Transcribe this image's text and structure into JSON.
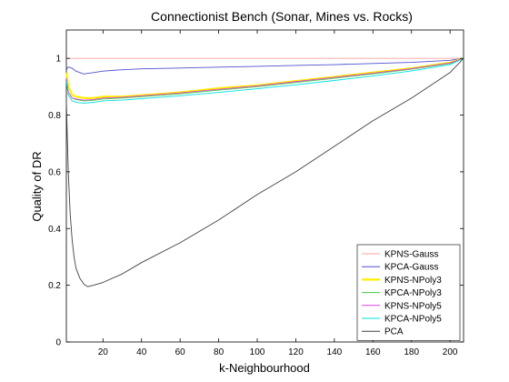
{
  "chart_data": {
    "type": "line",
    "title": "Connectionist Bench (Sonar, Mines vs. Rocks)",
    "xlabel": "k-Neighbourhood",
    "ylabel": "Quality of DR",
    "xlim": [
      1,
      207
    ],
    "ylim": [
      0,
      1.1
    ],
    "xticks": [
      20,
      40,
      60,
      80,
      100,
      120,
      140,
      160,
      180,
      200
    ],
    "yticks": [
      0,
      0.2,
      0.4,
      0.6,
      0.8,
      1
    ],
    "legend_position": "bottom-right",
    "series": [
      {
        "name": "KPNS-Gauss",
        "color": "#ff9f9f",
        "points": [
          [
            1,
            1.0
          ],
          [
            207,
            1.0
          ]
        ]
      },
      {
        "name": "KPCA-Gauss",
        "color": "#5050d0",
        "points": [
          [
            1,
            0.96
          ],
          [
            2,
            0.97
          ],
          [
            4,
            0.965
          ],
          [
            6,
            0.955
          ],
          [
            8,
            0.95
          ],
          [
            10,
            0.945
          ],
          [
            15,
            0.95
          ],
          [
            20,
            0.955
          ],
          [
            30,
            0.96
          ],
          [
            40,
            0.963
          ],
          [
            60,
            0.966
          ],
          [
            80,
            0.969
          ],
          [
            100,
            0.972
          ],
          [
            120,
            0.975
          ],
          [
            140,
            0.978
          ],
          [
            160,
            0.982
          ],
          [
            180,
            0.986
          ],
          [
            200,
            0.993
          ],
          [
            207,
            1.0
          ]
        ]
      },
      {
        "name": "KPNS-NPoly3",
        "color": "#ffee00",
        "points": [
          [
            1,
            0.95
          ],
          [
            2,
            0.9
          ],
          [
            4,
            0.87
          ],
          [
            6,
            0.865
          ],
          [
            10,
            0.86
          ],
          [
            15,
            0.86
          ],
          [
            20,
            0.865
          ],
          [
            30,
            0.865
          ],
          [
            40,
            0.87
          ],
          [
            60,
            0.88
          ],
          [
            80,
            0.895
          ],
          [
            100,
            0.905
          ],
          [
            120,
            0.92
          ],
          [
            140,
            0.935
          ],
          [
            160,
            0.95
          ],
          [
            180,
            0.965
          ],
          [
            200,
            0.985
          ],
          [
            207,
            1.0
          ]
        ]
      },
      {
        "name": "KPCA-NPoly3",
        "color": "#44cc44",
        "points": [
          [
            1,
            0.93
          ],
          [
            2,
            0.88
          ],
          [
            4,
            0.86
          ],
          [
            6,
            0.855
          ],
          [
            10,
            0.85
          ],
          [
            15,
            0.852
          ],
          [
            20,
            0.857
          ],
          [
            30,
            0.86
          ],
          [
            40,
            0.865
          ],
          [
            60,
            0.875
          ],
          [
            80,
            0.888
          ],
          [
            100,
            0.9
          ],
          [
            120,
            0.915
          ],
          [
            140,
            0.93
          ],
          [
            160,
            0.945
          ],
          [
            180,
            0.962
          ],
          [
            200,
            0.982
          ],
          [
            207,
            1.0
          ]
        ]
      },
      {
        "name": "KPNS-NPoly5",
        "color": "#e040e0",
        "points": [
          [
            1,
            0.93
          ],
          [
            2,
            0.88
          ],
          [
            4,
            0.86
          ],
          [
            6,
            0.857
          ],
          [
            10,
            0.853
          ],
          [
            15,
            0.855
          ],
          [
            20,
            0.86
          ],
          [
            30,
            0.863
          ],
          [
            40,
            0.868
          ],
          [
            60,
            0.878
          ],
          [
            80,
            0.891
          ],
          [
            100,
            0.903
          ],
          [
            120,
            0.918
          ],
          [
            140,
            0.933
          ],
          [
            160,
            0.948
          ],
          [
            180,
            0.964
          ],
          [
            200,
            0.984
          ],
          [
            207,
            1.0
          ]
        ]
      },
      {
        "name": "KPCA-NPoly5",
        "color": "#00e0e0",
        "points": [
          [
            1,
            0.92
          ],
          [
            2,
            0.87
          ],
          [
            4,
            0.85
          ],
          [
            6,
            0.845
          ],
          [
            10,
            0.842
          ],
          [
            15,
            0.845
          ],
          [
            20,
            0.85
          ],
          [
            30,
            0.853
          ],
          [
            40,
            0.858
          ],
          [
            60,
            0.868
          ],
          [
            80,
            0.88
          ],
          [
            100,
            0.893
          ],
          [
            120,
            0.907
          ],
          [
            140,
            0.922
          ],
          [
            160,
            0.938
          ],
          [
            180,
            0.956
          ],
          [
            200,
            0.978
          ],
          [
            207,
            1.0
          ]
        ]
      },
      {
        "name": "PCA",
        "color": "#404040",
        "points": [
          [
            1,
            0.85
          ],
          [
            2,
            0.6
          ],
          [
            3,
            0.45
          ],
          [
            4,
            0.36
          ],
          [
            5,
            0.3
          ],
          [
            6,
            0.26
          ],
          [
            8,
            0.225
          ],
          [
            10,
            0.205
          ],
          [
            12,
            0.195
          ],
          [
            15,
            0.2
          ],
          [
            20,
            0.21
          ],
          [
            30,
            0.24
          ],
          [
            40,
            0.28
          ],
          [
            60,
            0.35
          ],
          [
            80,
            0.43
          ],
          [
            100,
            0.52
          ],
          [
            120,
            0.6
          ],
          [
            140,
            0.69
          ],
          [
            160,
            0.78
          ],
          [
            180,
            0.86
          ],
          [
            200,
            0.95
          ],
          [
            207,
            1.0
          ]
        ]
      }
    ]
  }
}
